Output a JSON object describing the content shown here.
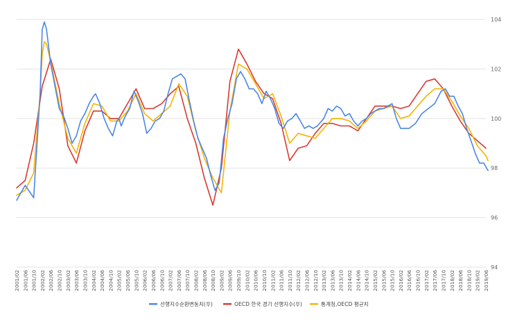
{
  "colors": {
    "series1": "#4a86e8",
    "series2": "#d9382f",
    "series3": "#f4b400",
    "grid": "#e3e3e3"
  },
  "chart_data": {
    "type": "line",
    "title": "",
    "xlabel": "",
    "ylabel": "",
    "ylim": [
      94,
      104
    ],
    "yticks": [
      "94",
      "96",
      "98",
      "100",
      "102",
      "104"
    ],
    "y_axis_side": "right",
    "grid": true,
    "legend_position": "bottom",
    "x_tick_labels": [
      "2001/02",
      "2001/06",
      "2001/10",
      "2002/02",
      "2002/06",
      "2002/10",
      "2003/02",
      "2003/06",
      "2003/10",
      "2004/02",
      "2004/06",
      "2004/10",
      "2005/02",
      "2005/06",
      "2005/10",
      "2006/02",
      "2006/06",
      "2006/10",
      "2007/02",
      "2007/06",
      "2007/10",
      "2008/02",
      "2008/06",
      "2008/10",
      "2009/02",
      "2009/06",
      "2009/10",
      "2010/02",
      "2010/06",
      "2010/10",
      "2011/02",
      "2011/06",
      "2011/10",
      "2012/02",
      "2012/06",
      "2012/10",
      "2013/02",
      "2013/06",
      "2013/10",
      "2014/02",
      "2014/06",
      "2014/10",
      "2015/02",
      "2015/06",
      "2015/10",
      "2016/02",
      "2016/06",
      "2016/10",
      "2017/02",
      "2017/06",
      "2017/10",
      "2018/02",
      "2018/06",
      "2018/10",
      "2019/02",
      "2019/06"
    ],
    "series": [
      {
        "name": "선행지수순환변동치(우)",
        "color": "#4a86e8",
        "points": [
          [
            "2001/02",
            96.7
          ],
          [
            "2001/06",
            97.3
          ],
          [
            "2001/10",
            96.8
          ],
          [
            "2002/01",
            101.0
          ],
          [
            "2002/02",
            103.6
          ],
          [
            "2002/03",
            103.9
          ],
          [
            "2002/04",
            103.6
          ],
          [
            "2002/06",
            102.2
          ],
          [
            "2002/10",
            100.4
          ],
          [
            "2002/12",
            100.1
          ],
          [
            "2003/02",
            99.6
          ],
          [
            "2003/04",
            99.0
          ],
          [
            "2003/06",
            99.3
          ],
          [
            "2003/08",
            99.9
          ],
          [
            "2003/10",
            100.2
          ],
          [
            "2003/12",
            100.6
          ],
          [
            "2004/02",
            100.9
          ],
          [
            "2004/03",
            101.0
          ],
          [
            "2004/05",
            100.6
          ],
          [
            "2004/07",
            100.0
          ],
          [
            "2004/09",
            99.6
          ],
          [
            "2004/11",
            99.3
          ],
          [
            "2005/01",
            99.9
          ],
          [
            "2005/02",
            100.0
          ],
          [
            "2005/03",
            99.7
          ],
          [
            "2005/05",
            100.1
          ],
          [
            "2005/07",
            100.4
          ],
          [
            "2005/09",
            101.1
          ],
          [
            "2005/11",
            100.7
          ],
          [
            "2006/01",
            100.2
          ],
          [
            "2006/03",
            99.4
          ],
          [
            "2006/05",
            99.6
          ],
          [
            "2006/07",
            99.9
          ],
          [
            "2006/09",
            100.0
          ],
          [
            "2006/11",
            100.3
          ],
          [
            "2007/01",
            101.0
          ],
          [
            "2007/03",
            101.6
          ],
          [
            "2007/05",
            101.7
          ],
          [
            "2007/07",
            101.8
          ],
          [
            "2007/09",
            101.6
          ],
          [
            "2007/11",
            100.7
          ],
          [
            "2008/01",
            99.9
          ],
          [
            "2008/03",
            99.2
          ],
          [
            "2008/05",
            98.8
          ],
          [
            "2008/07",
            98.4
          ],
          [
            "2008/09",
            97.7
          ],
          [
            "2008/11",
            97.1
          ],
          [
            "2009/01",
            97.4
          ],
          [
            "2009/03",
            99.2
          ],
          [
            "2009/05",
            100.0
          ],
          [
            "2009/07",
            100.6
          ],
          [
            "2009/09",
            101.6
          ],
          [
            "2009/11",
            101.9
          ],
          [
            "2010/01",
            101.6
          ],
          [
            "2010/03",
            101.2
          ],
          [
            "2010/05",
            101.2
          ],
          [
            "2010/07",
            101.0
          ],
          [
            "2010/09",
            100.6
          ],
          [
            "2010/11",
            101.1
          ],
          [
            "2011/01",
            100.8
          ],
          [
            "2011/03",
            100.4
          ],
          [
            "2011/05",
            99.8
          ],
          [
            "2011/07",
            99.6
          ],
          [
            "2011/09",
            99.9
          ],
          [
            "2011/11",
            100.0
          ],
          [
            "2012/01",
            100.2
          ],
          [
            "2012/03",
            99.9
          ],
          [
            "2012/05",
            99.6
          ],
          [
            "2012/07",
            99.7
          ],
          [
            "2012/09",
            99.6
          ],
          [
            "2012/11",
            99.7
          ],
          [
            "2013/02",
            100.0
          ],
          [
            "2013/04",
            100.4
          ],
          [
            "2013/06",
            100.3
          ],
          [
            "2013/08",
            100.5
          ],
          [
            "2013/10",
            100.4
          ],
          [
            "2013/12",
            100.1
          ],
          [
            "2014/02",
            100.2
          ],
          [
            "2014/04",
            99.9
          ],
          [
            "2014/06",
            99.7
          ],
          [
            "2014/08",
            99.9
          ],
          [
            "2014/10",
            100.0
          ],
          [
            "2014/12",
            100.2
          ],
          [
            "2015/02",
            100.3
          ],
          [
            "2015/04",
            100.4
          ],
          [
            "2015/06",
            100.4
          ],
          [
            "2015/08",
            100.5
          ],
          [
            "2015/10",
            100.6
          ],
          [
            "2015/12",
            100.0
          ],
          [
            "2016/02",
            99.6
          ],
          [
            "2016/06",
            99.6
          ],
          [
            "2016/09",
            99.8
          ],
          [
            "2016/12",
            100.2
          ],
          [
            "2017/03",
            100.4
          ],
          [
            "2017/06",
            100.6
          ],
          [
            "2017/09",
            101.1
          ],
          [
            "2017/11",
            101.2
          ],
          [
            "2018/01",
            100.9
          ],
          [
            "2018/03",
            100.9
          ],
          [
            "2018/05",
            100.5
          ],
          [
            "2018/07",
            100.2
          ],
          [
            "2018/09",
            99.6
          ],
          [
            "2018/11",
            99.1
          ],
          [
            "2019/01",
            98.6
          ],
          [
            "2019/03",
            98.2
          ],
          [
            "2019/05",
            98.2
          ],
          [
            "2019/07",
            97.9
          ]
        ]
      },
      {
        "name": "OECD 한국 경기 선행지수(우)",
        "color": "#d9382f",
        "points": [
          [
            "2001/02",
            97.2
          ],
          [
            "2001/06",
            97.5
          ],
          [
            "2001/10",
            99.0
          ],
          [
            "2002/02",
            101.3
          ],
          [
            "2002/06",
            102.4
          ],
          [
            "2002/10",
            101.2
          ],
          [
            "2003/02",
            98.9
          ],
          [
            "2003/06",
            98.2
          ],
          [
            "2003/10",
            99.5
          ],
          [
            "2004/02",
            100.3
          ],
          [
            "2004/06",
            100.3
          ],
          [
            "2004/10",
            100.0
          ],
          [
            "2005/02",
            100.0
          ],
          [
            "2005/06",
            100.6
          ],
          [
            "2005/10",
            101.2
          ],
          [
            "2006/02",
            100.4
          ],
          [
            "2006/06",
            100.4
          ],
          [
            "2006/10",
            100.6
          ],
          [
            "2007/02",
            101.0
          ],
          [
            "2007/06",
            101.3
          ],
          [
            "2007/10",
            100.0
          ],
          [
            "2008/02",
            99.0
          ],
          [
            "2008/06",
            97.6
          ],
          [
            "2008/10",
            96.5
          ],
          [
            "2009/02",
            98.0
          ],
          [
            "2009/06",
            101.5
          ],
          [
            "2009/10",
            102.8
          ],
          [
            "2010/02",
            102.2
          ],
          [
            "2010/06",
            101.5
          ],
          [
            "2010/10",
            101.0
          ],
          [
            "2011/02",
            100.8
          ],
          [
            "2011/06",
            99.8
          ],
          [
            "2011/10",
            98.3
          ],
          [
            "2012/02",
            98.8
          ],
          [
            "2012/06",
            98.9
          ],
          [
            "2012/10",
            99.4
          ],
          [
            "2013/02",
            99.8
          ],
          [
            "2013/06",
            99.8
          ],
          [
            "2013/10",
            99.7
          ],
          [
            "2014/02",
            99.7
          ],
          [
            "2014/06",
            99.5
          ],
          [
            "2014/10",
            100.0
          ],
          [
            "2015/02",
            100.5
          ],
          [
            "2015/06",
            100.5
          ],
          [
            "2015/10",
            100.5
          ],
          [
            "2016/02",
            100.4
          ],
          [
            "2016/06",
            100.5
          ],
          [
            "2016/10",
            101.0
          ],
          [
            "2017/02",
            101.5
          ],
          [
            "2017/06",
            101.6
          ],
          [
            "2017/10",
            101.2
          ],
          [
            "2018/02",
            100.5
          ],
          [
            "2018/06",
            99.9
          ],
          [
            "2018/10",
            99.4
          ],
          [
            "2019/02",
            99.1
          ],
          [
            "2019/06",
            98.8
          ]
        ]
      },
      {
        "name": "통계청,OECD 평균치",
        "color": "#f4b400",
        "points": [
          [
            "2001/02",
            96.9
          ],
          [
            "2001/06",
            97.1
          ],
          [
            "2001/10",
            97.8
          ],
          [
            "2002/01",
            101.0
          ],
          [
            "2002/02",
            102.6
          ],
          [
            "2002/03",
            103.1
          ],
          [
            "2002/04",
            103.0
          ],
          [
            "2002/06",
            102.3
          ],
          [
            "2002/10",
            100.6
          ],
          [
            "2003/02",
            99.2
          ],
          [
            "2003/06",
            98.6
          ],
          [
            "2003/10",
            99.8
          ],
          [
            "2004/02",
            100.6
          ],
          [
            "2004/06",
            100.5
          ],
          [
            "2004/10",
            99.9
          ],
          [
            "2005/02",
            99.9
          ],
          [
            "2005/06",
            100.3
          ],
          [
            "2005/10",
            101.0
          ],
          [
            "2006/02",
            100.2
          ],
          [
            "2006/06",
            99.9
          ],
          [
            "2006/10",
            100.2
          ],
          [
            "2007/02",
            100.5
          ],
          [
            "2007/06",
            101.4
          ],
          [
            "2007/10",
            100.9
          ],
          [
            "2008/02",
            99.5
          ],
          [
            "2008/06",
            98.4
          ],
          [
            "2008/10",
            97.6
          ],
          [
            "2009/02",
            97.0
          ],
          [
            "2009/06",
            100.3
          ],
          [
            "2009/10",
            102.2
          ],
          [
            "2010/02",
            102.0
          ],
          [
            "2010/06",
            101.4
          ],
          [
            "2010/10",
            100.8
          ],
          [
            "2011/02",
            101.0
          ],
          [
            "2011/06",
            100.1
          ],
          [
            "2011/10",
            99.0
          ],
          [
            "2012/02",
            99.4
          ],
          [
            "2012/06",
            99.3
          ],
          [
            "2012/10",
            99.2
          ],
          [
            "2013/02",
            99.6
          ],
          [
            "2013/06",
            100.0
          ],
          [
            "2013/10",
            100.0
          ],
          [
            "2014/02",
            99.9
          ],
          [
            "2014/06",
            99.6
          ],
          [
            "2014/10",
            99.9
          ],
          [
            "2015/02",
            100.3
          ],
          [
            "2015/06",
            100.4
          ],
          [
            "2015/10",
            100.5
          ],
          [
            "2016/02",
            100.0
          ],
          [
            "2016/06",
            100.1
          ],
          [
            "2016/10",
            100.5
          ],
          [
            "2017/02",
            100.9
          ],
          [
            "2017/06",
            101.2
          ],
          [
            "2017/10",
            101.2
          ],
          [
            "2018/02",
            100.7
          ],
          [
            "2018/06",
            100.1
          ],
          [
            "2018/10",
            99.6
          ],
          [
            "2019/02",
            98.9
          ],
          [
            "2019/06",
            98.5
          ],
          [
            "2019/07",
            98.3
          ]
        ]
      }
    ]
  }
}
